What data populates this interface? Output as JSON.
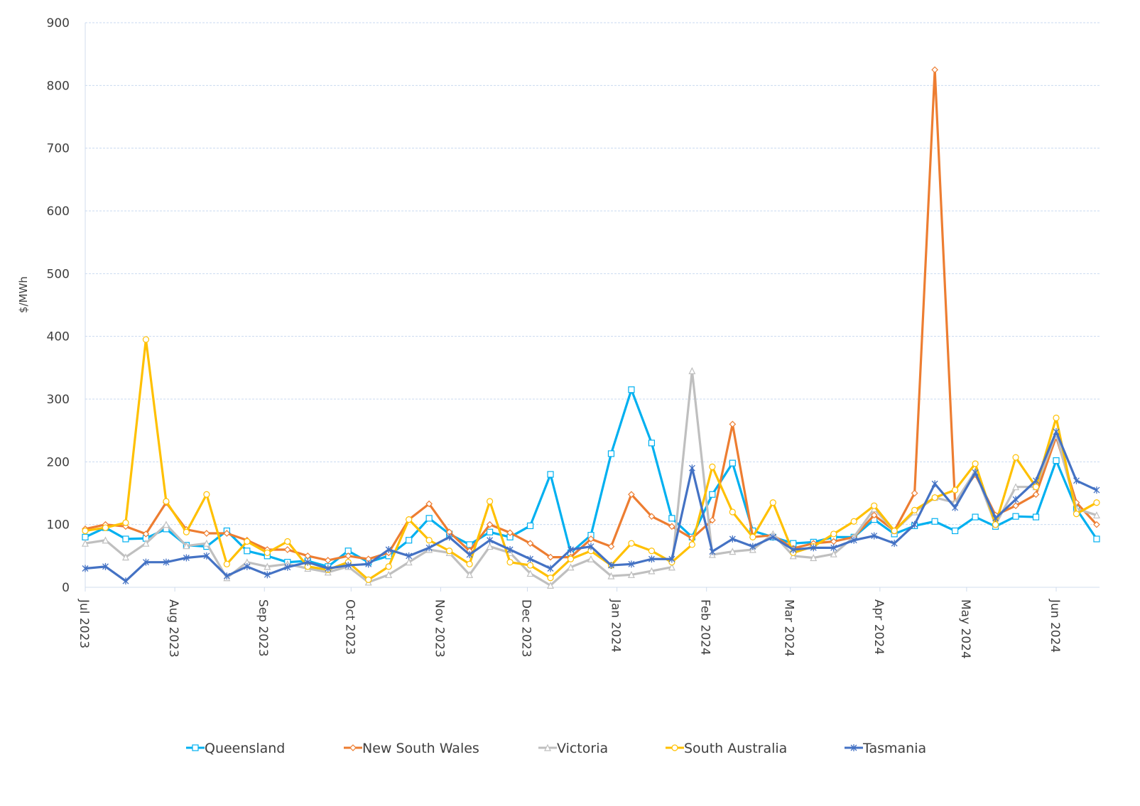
{
  "chart_data": {
    "type": "line",
    "title": "",
    "xlabel": "",
    "ylabel": "$/MWh",
    "ylim": [
      0,
      900
    ],
    "yticks": [
      0,
      100,
      200,
      300,
      400,
      500,
      600,
      700,
      800,
      900
    ],
    "grid": true,
    "legend_position": "bottom",
    "x_start": "2023-07-01",
    "x_interval_days": 7,
    "xtick_labels": [
      "Jul 2023",
      "Aug 2023",
      "Sep 2023",
      "Oct 2023",
      "Nov 2023",
      "Dec 2023",
      "Jan 2024",
      "Feb 2024",
      "Mar 2024",
      "Apr 2024",
      "May 2024",
      "Jun 2024"
    ],
    "xtick_dates": [
      "2023-07-01",
      "2023-08-01",
      "2023-09-01",
      "2023-10-01",
      "2023-11-01",
      "2023-12-01",
      "2024-01-01",
      "2024-02-01",
      "2024-03-01",
      "2024-04-01",
      "2024-05-01",
      "2024-06-01"
    ],
    "series": [
      {
        "name": "Queensland",
        "color": "#00B0F0",
        "marker": "square",
        "values": [
          80,
          95,
          77,
          78,
          93,
          67,
          65,
          90,
          58,
          50,
          40,
          42,
          33,
          58,
          40,
          50,
          75,
          110,
          85,
          68,
          88,
          80,
          98,
          180,
          55,
          83,
          213,
          315,
          230,
          110,
          80,
          148,
          198,
          90,
          80,
          70,
          72,
          80,
          80,
          108,
          85,
          98,
          105,
          90,
          112,
          97,
          113,
          112,
          202,
          125,
          77
        ]
      },
      {
        "name": "New South Wales",
        "color": "#ED7D31",
        "marker": "diamond",
        "values": [
          93,
          100,
          97,
          85,
          135,
          92,
          86,
          86,
          75,
          60,
          60,
          50,
          43,
          50,
          45,
          55,
          108,
          133,
          88,
          58,
          100,
          87,
          70,
          48,
          48,
          77,
          65,
          148,
          113,
          97,
          78,
          107,
          260,
          80,
          83,
          62,
          70,
          73,
          80,
          115,
          90,
          150,
          825,
          135,
          180,
          115,
          130,
          148,
          240,
          135,
          100
        ]
      },
      {
        "name": "Victoria",
        "color": "#BFBFBF",
        "marker": "triangle",
        "values": [
          70,
          75,
          48,
          70,
          100,
          66,
          70,
          15,
          40,
          33,
          37,
          30,
          24,
          33,
          8,
          20,
          40,
          60,
          55,
          20,
          65,
          55,
          22,
          3,
          32,
          45,
          18,
          20,
          26,
          32,
          345,
          52,
          57,
          60,
          85,
          50,
          47,
          53,
          80,
          125,
          90,
          120,
          143,
          135,
          185,
          100,
          160,
          160,
          245,
          125,
          115
        ]
      },
      {
        "name": "South Australia",
        "color": "#FFC000",
        "marker": "circle",
        "values": [
          90,
          95,
          103,
          395,
          137,
          88,
          148,
          37,
          73,
          55,
          73,
          33,
          28,
          40,
          12,
          33,
          108,
          75,
          58,
          37,
          137,
          40,
          35,
          15,
          45,
          58,
          35,
          70,
          58,
          40,
          68,
          192,
          120,
          80,
          135,
          55,
          65,
          85,
          105,
          130,
          90,
          123,
          143,
          155,
          197,
          100,
          207,
          160,
          270,
          117,
          135
        ]
      },
      {
        "name": "Tasmania",
        "color": "#4472C4",
        "marker": "asterisk",
        "values": [
          30,
          33,
          10,
          40,
          40,
          47,
          50,
          18,
          33,
          20,
          32,
          40,
          30,
          35,
          37,
          60,
          50,
          63,
          80,
          52,
          75,
          60,
          45,
          30,
          60,
          65,
          35,
          37,
          45,
          45,
          190,
          57,
          77,
          65,
          80,
          60,
          63,
          63,
          75,
          82,
          70,
          100,
          165,
          127,
          183,
          110,
          140,
          170,
          248,
          170,
          155
        ]
      }
    ]
  }
}
